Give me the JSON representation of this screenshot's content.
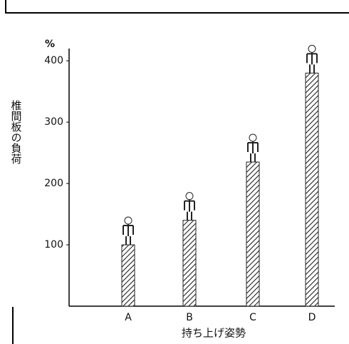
{
  "chart_data": {
    "type": "bar",
    "y_unit": "%",
    "y_label": "椎間板の負荷",
    "x_label": "持ち上げ姿勢",
    "categories": [
      "A",
      "B",
      "C",
      "D"
    ],
    "values": [
      100,
      140,
      235,
      380
    ],
    "ylim": [
      0,
      420
    ],
    "yticks": [
      100,
      200,
      300,
      400
    ],
    "color": "#222",
    "grid": false
  }
}
